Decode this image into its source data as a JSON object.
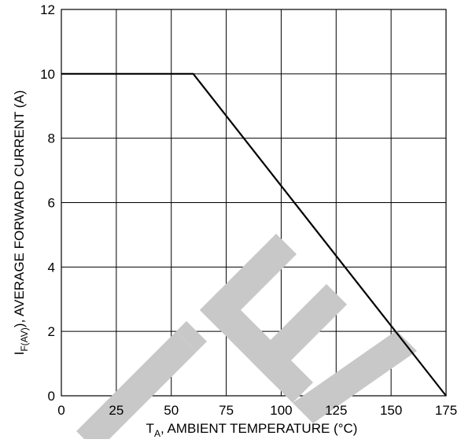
{
  "chart_data": {
    "type": "line",
    "title": "",
    "xlabel": {
      "main": "T",
      "sub": "A",
      "rest": ", AMBIENT TEMPERATURE (°C)"
    },
    "ylabel": {
      "main": "I",
      "sub": "F(AV)",
      "rest": "), AVERAGE FORWARD CURRENT (A)"
    },
    "xlim": [
      0,
      175
    ],
    "ylim": [
      0,
      12
    ],
    "x_ticks": [
      0,
      25,
      50,
      75,
      100,
      125,
      150,
      175
    ],
    "x_tick_labels": [
      "0",
      "25",
      "50",
      "75",
      "100",
      "125",
      "150",
      "175"
    ],
    "y_ticks": [
      0,
      2,
      4,
      6,
      8,
      10,
      12
    ],
    "y_tick_labels": [
      "0",
      "2",
      "4",
      "6",
      "8",
      "10",
      "12"
    ],
    "grid": true,
    "series": [
      {
        "x": [
          0,
          60,
          175
        ],
        "y": [
          10,
          10,
          0
        ]
      }
    ],
    "watermark": "TE",
    "colors": {
      "line": "#000000",
      "grid": "#000000",
      "watermark": "#c8c8c8"
    }
  }
}
